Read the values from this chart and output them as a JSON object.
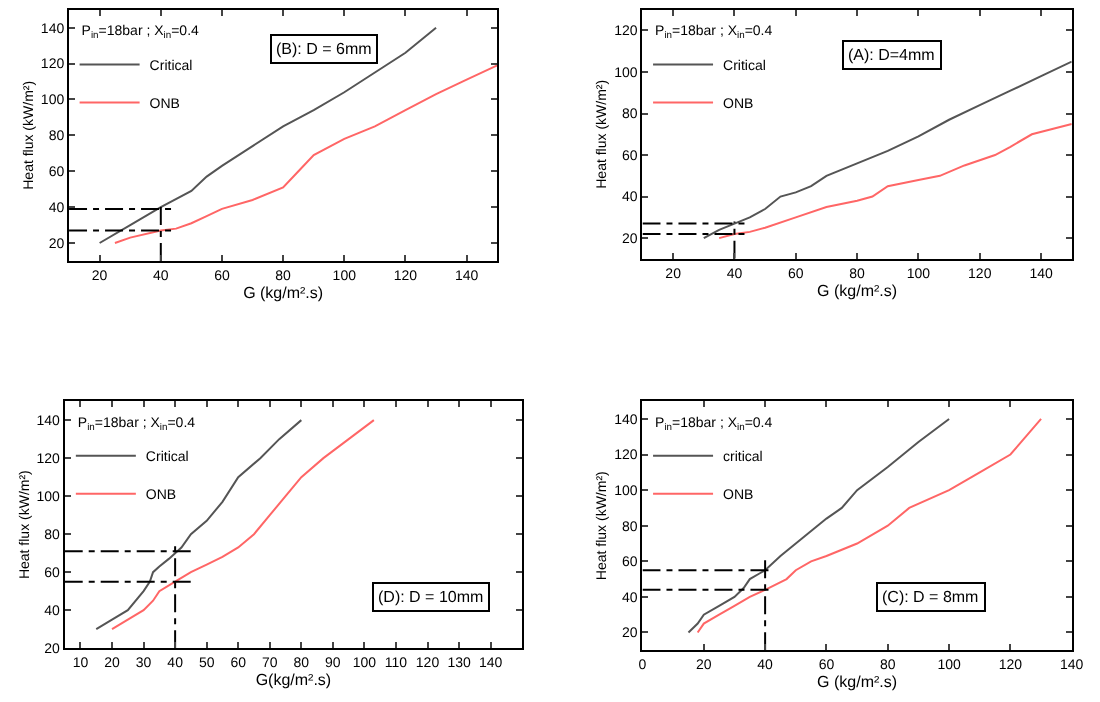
{
  "chart_data": [
    {
      "type": "line",
      "annotations": [
        "(B): D = 6mm"
      ],
      "xlabel": "G (kg/m².s)",
      "ylabel": "Heat flux (kW/m²)",
      "legend_title": "P$_{in}$=18bar ; X$_{in}$=0.4",
      "legend": "top left",
      "marker": "none",
      "line_style": "solid",
      "xlim": [
        10,
        150
      ],
      "xticks": [
        20,
        40,
        60,
        80,
        100,
        120,
        140
      ],
      "ylim": [
        10,
        150
      ],
      "yticks": [
        20,
        40,
        60,
        80,
        100,
        120,
        140
      ],
      "series": [
        {
          "name": "Critical",
          "color": "#555555",
          "x": [
            20,
            30,
            40,
            50,
            55,
            60,
            70,
            80,
            90,
            100,
            110,
            120,
            130
          ],
          "values": [
            20,
            30,
            40,
            49,
            57,
            63,
            74,
            85,
            94,
            104,
            115,
            126,
            140
          ]
        },
        {
          "name": "ONB",
          "color": "#ff6666",
          "x": [
            25,
            30,
            40,
            45,
            50,
            55,
            60,
            70,
            80,
            85,
            90,
            100,
            110,
            120,
            130,
            140,
            150
          ],
          "values": [
            20,
            23,
            27,
            28,
            31,
            35,
            39,
            44,
            51,
            60,
            69,
            78,
            85,
            94,
            103,
            111,
            119
          ]
        },
        {
          "color": "#000000",
          "line_style": "dashed",
          "x": [
            10,
            45
          ],
          "values": [
            39,
            39
          ]
        },
        {
          "color": "#000000",
          "line_style": "dashed",
          "x": [
            10,
            45
          ],
          "values": [
            27,
            27
          ]
        },
        {
          "color": "#000000",
          "line_style": "dashed",
          "x": [
            40,
            40
          ],
          "values": [
            10,
            43
          ]
        }
      ]
    },
    {
      "type": "line",
      "annotations": [
        "(A): D=4mm"
      ],
      "xlabel": "G (kg/m².s)",
      "ylabel": "Heat flux (kW/m²)",
      "legend_title": "P$_{in}$=18bar ; X$_{in}$=0.4",
      "legend": "top left",
      "marker": "none",
      "line_style": "solid",
      "xlim": [
        10,
        150
      ],
      "xticks": [
        20,
        40,
        60,
        80,
        100,
        120,
        140
      ],
      "ylim": [
        10,
        130
      ],
      "yticks": [
        20,
        40,
        60,
        80,
        100,
        120
      ],
      "series": [
        {
          "name": "Critical",
          "color": "#555555",
          "x": [
            30,
            35,
            40,
            45,
            50,
            55,
            60,
            65,
            70,
            80,
            90,
            100,
            110,
            120,
            130,
            140,
            150
          ],
          "values": [
            20,
            24,
            27,
            30,
            34,
            40,
            42,
            45,
            50,
            56,
            62,
            69,
            77,
            84,
            91,
            98,
            105
          ]
        },
        {
          "name": "ONB",
          "color": "#ff6666",
          "x": [
            35,
            40,
            45,
            50,
            60,
            70,
            80,
            85,
            90,
            100,
            107,
            115,
            125,
            130,
            137,
            150
          ],
          "values": [
            20,
            22,
            23,
            25,
            30,
            35,
            38,
            40,
            45,
            48,
            50,
            55,
            60,
            64,
            70,
            75
          ]
        },
        {
          "color": "#000000",
          "line_style": "dashed",
          "x": [
            10,
            45
          ],
          "values": [
            27,
            27
          ]
        },
        {
          "color": "#000000",
          "line_style": "dashed",
          "x": [
            10,
            45
          ],
          "values": [
            22,
            22
          ]
        },
        {
          "color": "#000000",
          "line_style": "dashed",
          "x": [
            40,
            40
          ],
          "values": [
            10,
            28
          ]
        }
      ]
    },
    {
      "type": "line",
      "annotations": [
        "(D): D = 10mm"
      ],
      "xlabel": "G(kg/m².s)",
      "ylabel": "Heat flux (kW/m²)",
      "legend_title": "P$_{in}$=18bar ; X$_{in}$=0.4",
      "legend": "top left",
      "marker": "none",
      "line_style": "solid",
      "xlim": [
        5,
        150
      ],
      "xticks": [
        10,
        20,
        30,
        40,
        50,
        60,
        70,
        80,
        90,
        100,
        110,
        120,
        130,
        140
      ],
      "ylim": [
        20,
        150
      ],
      "yticks": [
        20,
        40,
        60,
        80,
        100,
        120,
        140
      ],
      "series": [
        {
          "name": "Critical",
          "color": "#555555",
          "x": [
            15,
            20,
            25,
            30,
            32,
            33,
            35,
            38,
            40,
            42,
            45,
            50,
            55,
            60,
            67,
            73,
            80
          ],
          "values": [
            30,
            35,
            40,
            50,
            55,
            60,
            63,
            67,
            70,
            73,
            80,
            87,
            97,
            110,
            120,
            130,
            140
          ]
        },
        {
          "name": "ONB",
          "color": "#ff6666",
          "x": [
            20,
            25,
            30,
            33,
            35,
            40,
            45,
            50,
            55,
            60,
            65,
            70,
            75,
            80,
            87,
            95,
            103
          ],
          "values": [
            30,
            35,
            40,
            45,
            50,
            55,
            60,
            64,
            68,
            73,
            80,
            90,
            100,
            110,
            120,
            130,
            140
          ]
        },
        {
          "color": "#000000",
          "line_style": "dashed",
          "x": [
            5,
            46
          ],
          "values": [
            71,
            71
          ]
        },
        {
          "color": "#000000",
          "line_style": "dashed",
          "x": [
            5,
            46
          ],
          "values": [
            55,
            55
          ]
        },
        {
          "color": "#000000",
          "line_style": "dashed",
          "x": [
            40,
            40
          ],
          "values": [
            20,
            74
          ]
        }
      ]
    },
    {
      "type": "line",
      "annotations": [
        "(C): D = 8mm"
      ],
      "xlabel": "G (kg/m².s)",
      "ylabel": "Heat flux (kW/m²)",
      "legend_title": "P$_{in}$=18bar ; X$_{in}$=0.4",
      "legend": "top left",
      "marker": "none",
      "line_style": "solid",
      "xlim": [
        0,
        140
      ],
      "xticks": [
        0,
        20,
        40,
        60,
        80,
        100,
        120,
        140
      ],
      "ylim": [
        10,
        150
      ],
      "yticks": [
        20,
        40,
        60,
        80,
        100,
        120,
        140
      ],
      "series": [
        {
          "name": "critical",
          "color": "#555555",
          "x": [
            15,
            18,
            20,
            25,
            30,
            33,
            35,
            38,
            40,
            45,
            50,
            55,
            60,
            65,
            70,
            80,
            90,
            100
          ],
          "values": [
            20,
            25,
            30,
            35,
            40,
            45,
            50,
            53,
            55,
            63,
            70,
            77,
            84,
            90,
            100,
            113,
            127,
            140
          ]
        },
        {
          "name": "ONB",
          "color": "#ff6666",
          "x": [
            18,
            20,
            25,
            30,
            35,
            40,
            47,
            50,
            55,
            60,
            70,
            80,
            87,
            100,
            110,
            120,
            130
          ],
          "values": [
            20,
            25,
            30,
            35,
            40,
            44,
            50,
            55,
            60,
            63,
            70,
            80,
            90,
            100,
            110,
            120,
            140
          ]
        },
        {
          "color": "#000000",
          "line_style": "dashed",
          "x": [
            0,
            43
          ],
          "values": [
            55,
            55
          ]
        },
        {
          "color": "#000000",
          "line_style": "dashed",
          "x": [
            0,
            43
          ],
          "values": [
            44,
            44
          ]
        },
        {
          "color": "#000000",
          "line_style": "dashed",
          "x": [
            40,
            40
          ],
          "values": [
            10,
            62
          ]
        }
      ]
    }
  ]
}
